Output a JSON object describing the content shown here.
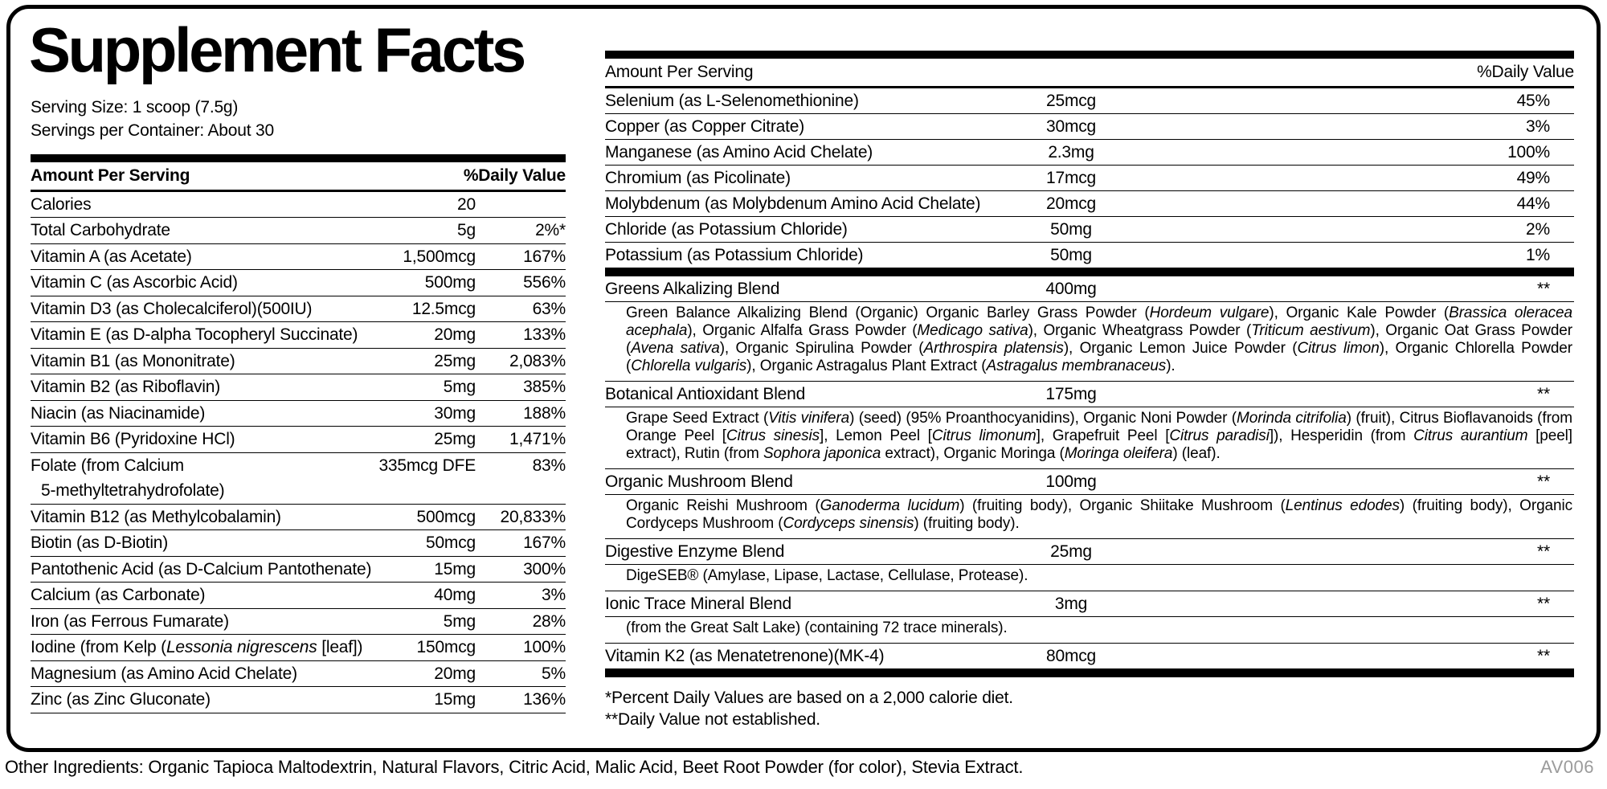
{
  "title": "Supplement Facts",
  "serving": {
    "size": "Serving Size: 1 scoop (7.5g)",
    "per_container": "Servings per Container: About 30"
  },
  "columns": {
    "amount": "Amount Per Serving",
    "dv": "%Daily Value"
  },
  "left_table": {
    "rows": [
      {
        "name": "Calories",
        "amount": "20",
        "dv": ""
      },
      {
        "name": "Total Carbohydrate",
        "amount": "5g",
        "dv": "2%*"
      },
      {
        "name": "Vitamin A (as Acetate)",
        "amount": "1,500mcg",
        "dv": "167%"
      },
      {
        "name": "Vitamin C (as Ascorbic Acid)",
        "amount": "500mg",
        "dv": "556%"
      },
      {
        "name": "Vitamin D3 (as Cholecalciferol)(500IU)",
        "amount": "12.5mcg",
        "dv": "63%"
      },
      {
        "name": "Vitamin E (as D-alpha Tocopheryl Succinate)",
        "amount": "20mg",
        "dv": "133%"
      },
      {
        "name": "Vitamin B1 (as Mononitrate)",
        "amount": "25mg",
        "dv": "2,083%"
      },
      {
        "name": "Vitamin B2 (as Riboflavin)",
        "amount": "5mg",
        "dv": "385%"
      },
      {
        "name": "Niacin (as Niacinamide)",
        "amount": "30mg",
        "dv": "188%"
      },
      {
        "name": "Vitamin B6 (Pyridoxine HCl)",
        "amount": "25mg",
        "dv": "1,471%"
      },
      {
        "name": "Folate (from Calcium\n5-methyltetrahydrofolate)",
        "amount": "335mcg DFE",
        "dv": "83%"
      },
      {
        "name": "Vitamin B12 (as Methylcobalamin)",
        "amount": "500mcg",
        "dv": "20,833%"
      },
      {
        "name": "Biotin (as D-Biotin)",
        "amount": "50mcg",
        "dv": "167%"
      },
      {
        "name": "Pantothenic Acid (as D-Calcium Pantothenate)",
        "amount": "15mg",
        "dv": "300%"
      },
      {
        "name": "Calcium (as Carbonate)",
        "amount": "40mg",
        "dv": "3%"
      },
      {
        "name": "Iron (as Ferrous Fumarate)",
        "amount": "5mg",
        "dv": "28%"
      },
      {
        "name": "Iodine (from Kelp (_Lessonia nigrescens_ [leaf])",
        "amount": "150mcg",
        "dv": "100%"
      },
      {
        "name": "Magnesium (as Amino Acid Chelate)",
        "amount": "20mg",
        "dv": "5%"
      },
      {
        "name": "Zinc (as Zinc Gluconate)",
        "amount": "15mg",
        "dv": "136%"
      }
    ]
  },
  "right_table": {
    "rows": [
      {
        "name": "Selenium (as L-Selenomethionine)",
        "amount": "25mcg",
        "dv": "45%"
      },
      {
        "name": "Copper (as Copper Citrate)",
        "amount": "30mcg",
        "dv": "3%"
      },
      {
        "name": "Manganese (as Amino Acid Chelate)",
        "amount": "2.3mg",
        "dv": "100%"
      },
      {
        "name": "Chromium (as Picolinate)",
        "amount": "17mcg",
        "dv": "49%"
      },
      {
        "name": "Molybdenum (as Molybdenum Amino Acid Chelate)",
        "amount": "20mcg",
        "dv": "44%"
      },
      {
        "name": "Chloride (as Potassium Chloride)",
        "amount": "50mg",
        "dv": "2%"
      },
      {
        "name": "Potassium (as Potassium Chloride)",
        "amount": "50mg",
        "dv": "1%"
      }
    ]
  },
  "blends": [
    {
      "name": "Greens Alkalizing Blend",
      "amount": "400mg",
      "dv": "**",
      "description": "Green Balance Alkalizing Blend (Organic) Organic Barley Grass Powder (_Hordeum vulgare_), Organic Kale Powder (_Brassica oleracea acephala_), Organic Alfalfa Grass Powder (_Medicago sativa_), Organic Wheatgrass Powder (_Triticum aestivum_), Organic Oat Grass Powder (_Avena sativa_), Organic Spirulina Powder (_Arthrospira platensis_), Organic Lemon Juice Powder (_Citrus limon_), Organic Chlorella Powder (_Chlorella vulgaris_), Organic Astragalus Plant Extract (_Astragalus membranaceus_)."
    },
    {
      "name": "Botanical Antioxidant Blend",
      "amount": "175mg",
      "dv": "**",
      "description": "Grape Seed Extract (_Vitis vinifera_) (seed) (95% Proanthocyanidins), Organic Noni Powder (_Morinda citrifolia_) (fruit), Citrus Bioflavanoids (from Orange Peel [_Citrus sinesis_], Lemon Peel [_Citrus limonum_], Grapefruit Peel [_Citrus paradisi_]), Hesperidin (from _Citrus aurantium_ [peel] extract), Rutin (from _Sophora japonica_ extract), Organic Moringa (_Moringa oleifera_) (leaf)."
    },
    {
      "name": "Organic Mushroom Blend",
      "amount": "100mg",
      "dv": "**",
      "description": "Organic Reishi Mushroom (_Ganoderma lucidum_) (fruiting body), Organic Shiitake Mushroom (_Lentinus edodes_) (fruiting body), Organic Cordyceps Mushroom (_Cordyceps sinensis_) (fruiting body)."
    },
    {
      "name": "Digestive Enzyme Blend",
      "amount": "25mg",
      "dv": "**",
      "description": "DigeSEB® (Amylase, Lipase, Lactase, Cellulase, Protease)."
    },
    {
      "name": "Ionic Trace Mineral Blend",
      "amount": "3mg",
      "dv": "**",
      "description": "(from the Great Salt Lake) (containing 72 trace minerals)."
    },
    {
      "name": "Vitamin K2 (as Menatetrenone)(MK-4)",
      "amount": "80mcg",
      "dv": "**"
    }
  ],
  "footnotes": [
    "*Percent Daily Values are based on a 2,000 calorie diet.",
    "**Daily Value not established."
  ],
  "other_ingredients": "Other Ingredients: Organic Tapioca Maltodextrin, Natural Flavors, Citric Acid, Malic Acid, Beet Root Powder (for color), Stevia Extract.",
  "product_code": "AV006",
  "colors": {
    "text": "#000000",
    "muted": "#9b9b9b",
    "rule": "#000000"
  }
}
